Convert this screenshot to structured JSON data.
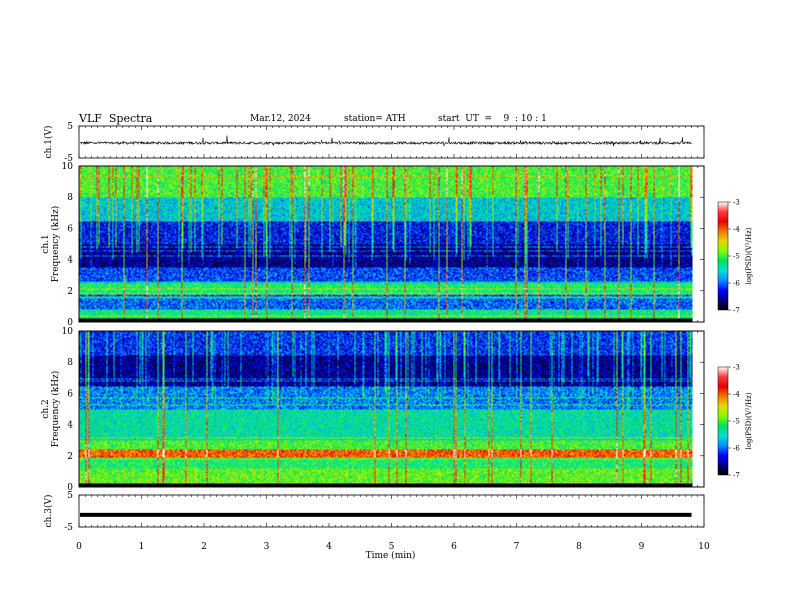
{
  "header": {
    "title": "VLF  Spectra",
    "date": "Mar.12, 2024",
    "station": "station= ATH",
    "start": "start  UT  =    9  : 10 : 1"
  },
  "chart_data": [
    {
      "type": "line",
      "ylabel": "ch.1(V)",
      "ylim": [
        -5,
        5
      ],
      "y_ticks": [
        "5",
        "-5"
      ],
      "baseline_v": -0.3,
      "noise_v": 0.4,
      "xlim": [
        0,
        10
      ]
    },
    {
      "type": "heatmap",
      "ylabel_ch": "ch.1",
      "ylabel": "Frequency (kHz)",
      "ylim": [
        0,
        10
      ],
      "y_ticks": [
        "0",
        "2",
        "4",
        "6",
        "8",
        "10"
      ],
      "colorbar_label": "log(PSD)(V²/Hz)",
      "colorbar_ticks": [
        "-3",
        "-4",
        "-5",
        "-6",
        "-7"
      ],
      "clim": [
        -7,
        -3
      ],
      "data_end_min": 9.8
    },
    {
      "type": "heatmap",
      "ylabel_ch": "ch.2",
      "ylabel": "Frequency (kHz)",
      "ylim": [
        0,
        10
      ],
      "y_ticks": [
        "0",
        "2",
        "4",
        "6",
        "8",
        "10"
      ],
      "colorbar_label": "log(PSD)(V²/Hz)",
      "colorbar_ticks": [
        "-3",
        "-4",
        "-5",
        "-6",
        "-7"
      ],
      "clim": [
        -7,
        -3
      ],
      "data_end_min": 9.8
    },
    {
      "type": "line",
      "ylabel": "ch.3(V)",
      "ylim": [
        -5,
        5
      ],
      "y_ticks": [
        "5",
        "-5"
      ],
      "baseline_v": -1.2,
      "noise_v": 0.05,
      "xlim": [
        0,
        10
      ],
      "xlabel": "Time  (min)",
      "x_ticks": [
        "0",
        "1",
        "2",
        "3",
        "4",
        "5",
        "6",
        "7",
        "8",
        "9",
        "10"
      ]
    }
  ],
  "colors": {
    "colormap": [
      "#ffffff",
      "#ff3a3a",
      "#e60000",
      "#f07800",
      "#e8d800",
      "#7dff00",
      "#00e060",
      "#00e0d0",
      "#0090ff",
      "#0000ff",
      "#000080",
      "#000000"
    ]
  }
}
